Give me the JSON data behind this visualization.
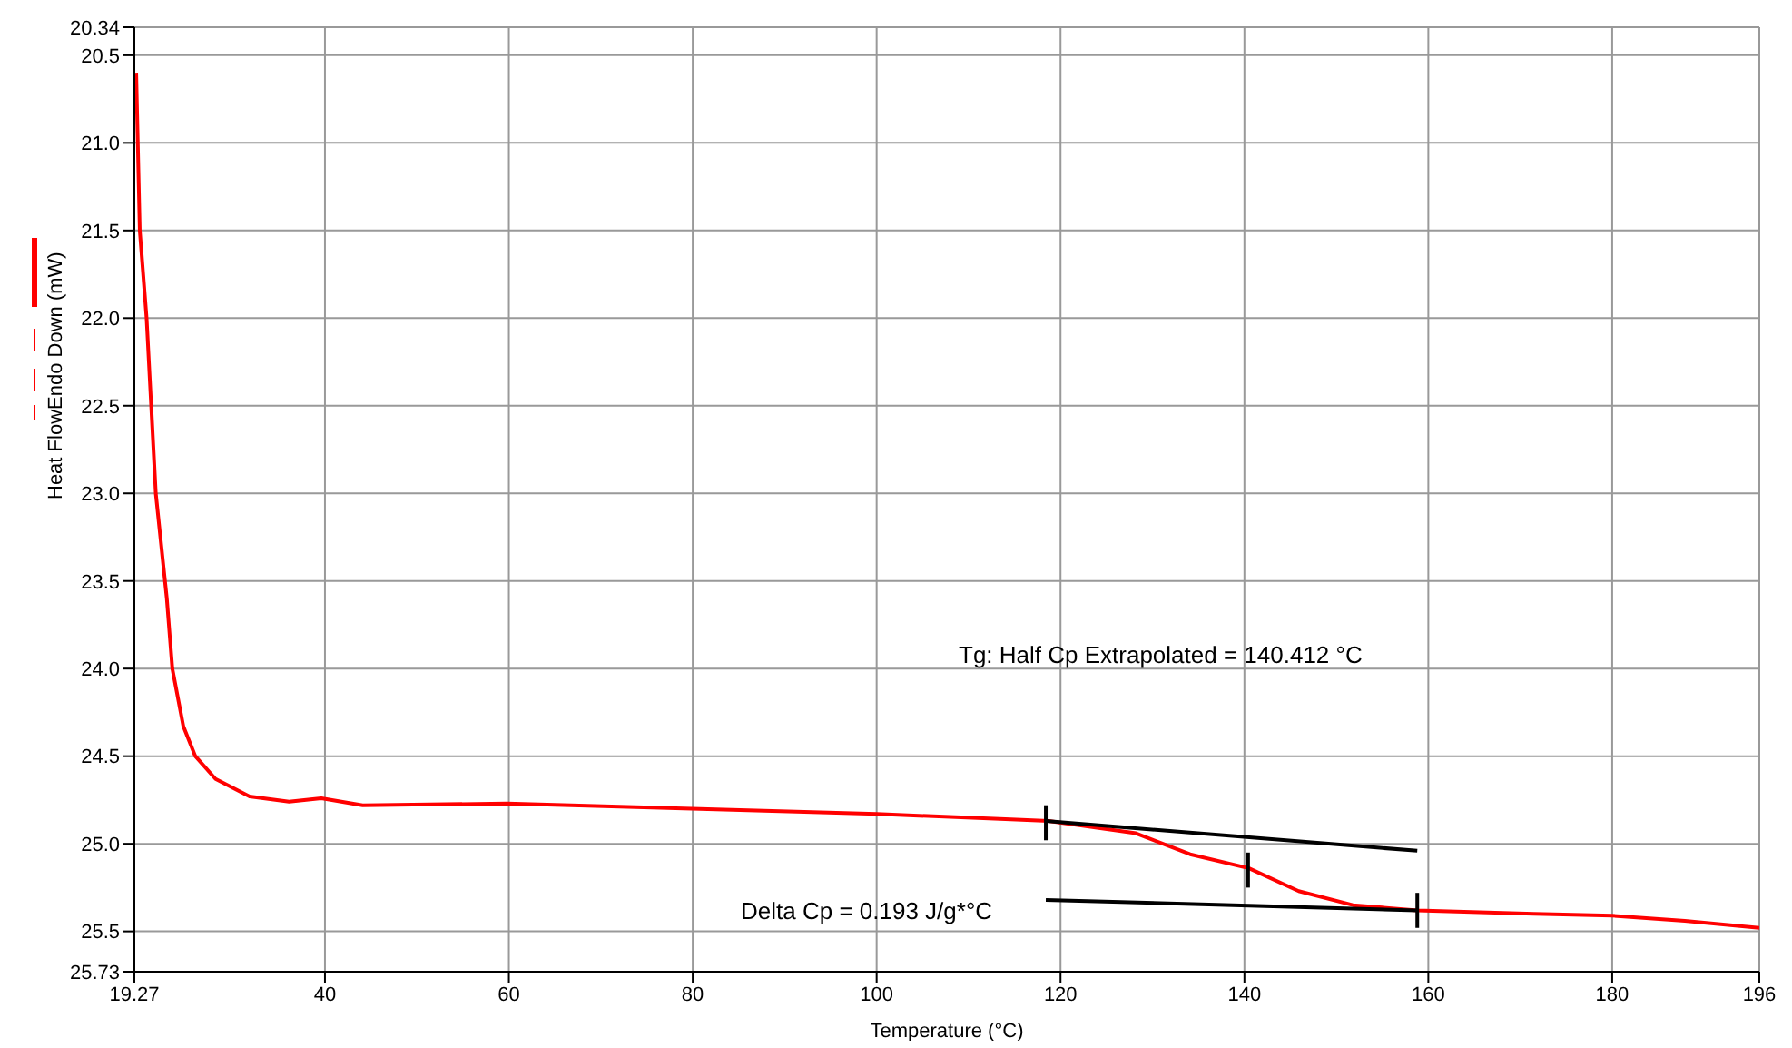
{
  "chart_data": {
    "type": "line",
    "xlabel": "Temperature (°C)",
    "ylabel": "Heat FlowEndo Down (mW)",
    "xlim": [
      19.27,
      196
    ],
    "xticks": [
      19.27,
      40,
      60,
      80,
      100,
      120,
      140,
      160,
      180,
      196
    ],
    "ylim": [
      25.73,
      20.34
    ],
    "yticks": [
      20.34,
      20.5,
      {
        "value": 21,
        "label": "21.0"
      },
      21.5,
      {
        "value": 22,
        "label": "22.0"
      },
      22.5,
      {
        "value": 23,
        "label": "23.0"
      },
      23.5,
      {
        "value": 24,
        "label": "24.0"
      },
      24.5,
      {
        "value": 25,
        "label": "25.0"
      },
      25.5,
      25.73
    ],
    "grid": true,
    "series": [
      {
        "color": "#ff0000",
        "x": [
          19.47,
          19.86,
          20.6,
          21.6,
          22.8,
          23.4,
          24.6,
          25.9,
          28.1,
          31.8,
          36.1,
          39.6,
          44.1,
          59.8,
          79.9,
          100,
          114.6,
          118.7,
          128.2,
          134.1,
          140.5,
          145.9,
          151.8,
          158.8,
          171.5,
          180,
          187.9,
          196
        ],
        "values": [
          20.6,
          21.5,
          22.0,
          23.0,
          23.6,
          24.0,
          24.33,
          24.5,
          24.63,
          24.73,
          24.76,
          24.74,
          24.78,
          24.77,
          24.8,
          24.83,
          24.86,
          24.87,
          24.94,
          25.06,
          25.14,
          25.27,
          25.35,
          25.38,
          25.4,
          25.41,
          25.44,
          25.48
        ]
      },
      {
        "color": "#000000",
        "x": [
          118.4,
          158.8
        ],
        "values": [
          24.87,
          25.04
        ]
      },
      {
        "color": "#000000",
        "x": [
          118.4,
          158.8
        ],
        "values": [
          25.32,
          25.38
        ]
      },
      {
        "color": "#000000",
        "x": [
          118.4,
          118.4
        ],
        "values": [
          24.78,
          24.98
        ]
      },
      {
        "color": "#000000",
        "x": [
          140.4,
          140.4
        ],
        "values": [
          25.05,
          25.25
        ]
      },
      {
        "color": "#000000",
        "x": [
          158.8,
          158.8
        ],
        "values": [
          25.28,
          25.48
        ]
      }
    ],
    "annotations": [
      "Tg: Half Cp Extrapolated = 140.412 °C",
      "Delta Cp = 0.193 J/g*°C"
    ]
  }
}
